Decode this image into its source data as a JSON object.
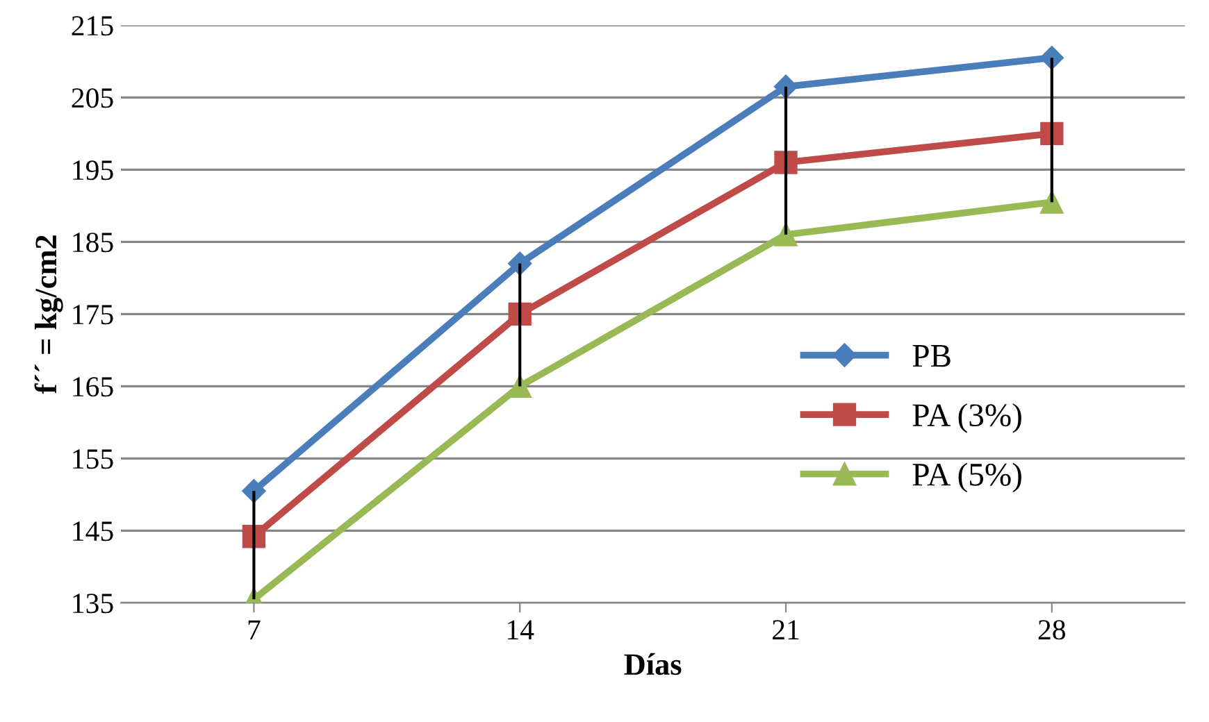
{
  "chart_data": {
    "type": "line",
    "xlabel": "Días",
    "ylabel": "f´´ = kg/cm2",
    "categories": [
      "7",
      "14",
      "21",
      "28"
    ],
    "series": [
      {
        "name": "PB",
        "color": "#4a7ebb",
        "marker": "diamond",
        "values": [
          150.5,
          182,
          206.5,
          210.5
        ],
        "errors": [
          [
            135.5,
            150.5
          ],
          [
            165,
            182
          ],
          [
            186,
            206.5
          ],
          [
            190.5,
            210.5
          ]
        ]
      },
      {
        "name": "PA (3%)",
        "color": "#be4b48",
        "marker": "square",
        "values": [
          144.2,
          175,
          196,
          200
        ]
      },
      {
        "name": "PA (5%)",
        "color": "#98b954",
        "marker": "triangle",
        "values": [
          135.5,
          165,
          186,
          190.5
        ]
      }
    ],
    "ylim": [
      135,
      215
    ],
    "yticks": [
      135,
      145,
      155,
      165,
      175,
      185,
      195,
      205,
      215
    ],
    "grid": "y",
    "legend": "right",
    "line_style": "solid"
  }
}
